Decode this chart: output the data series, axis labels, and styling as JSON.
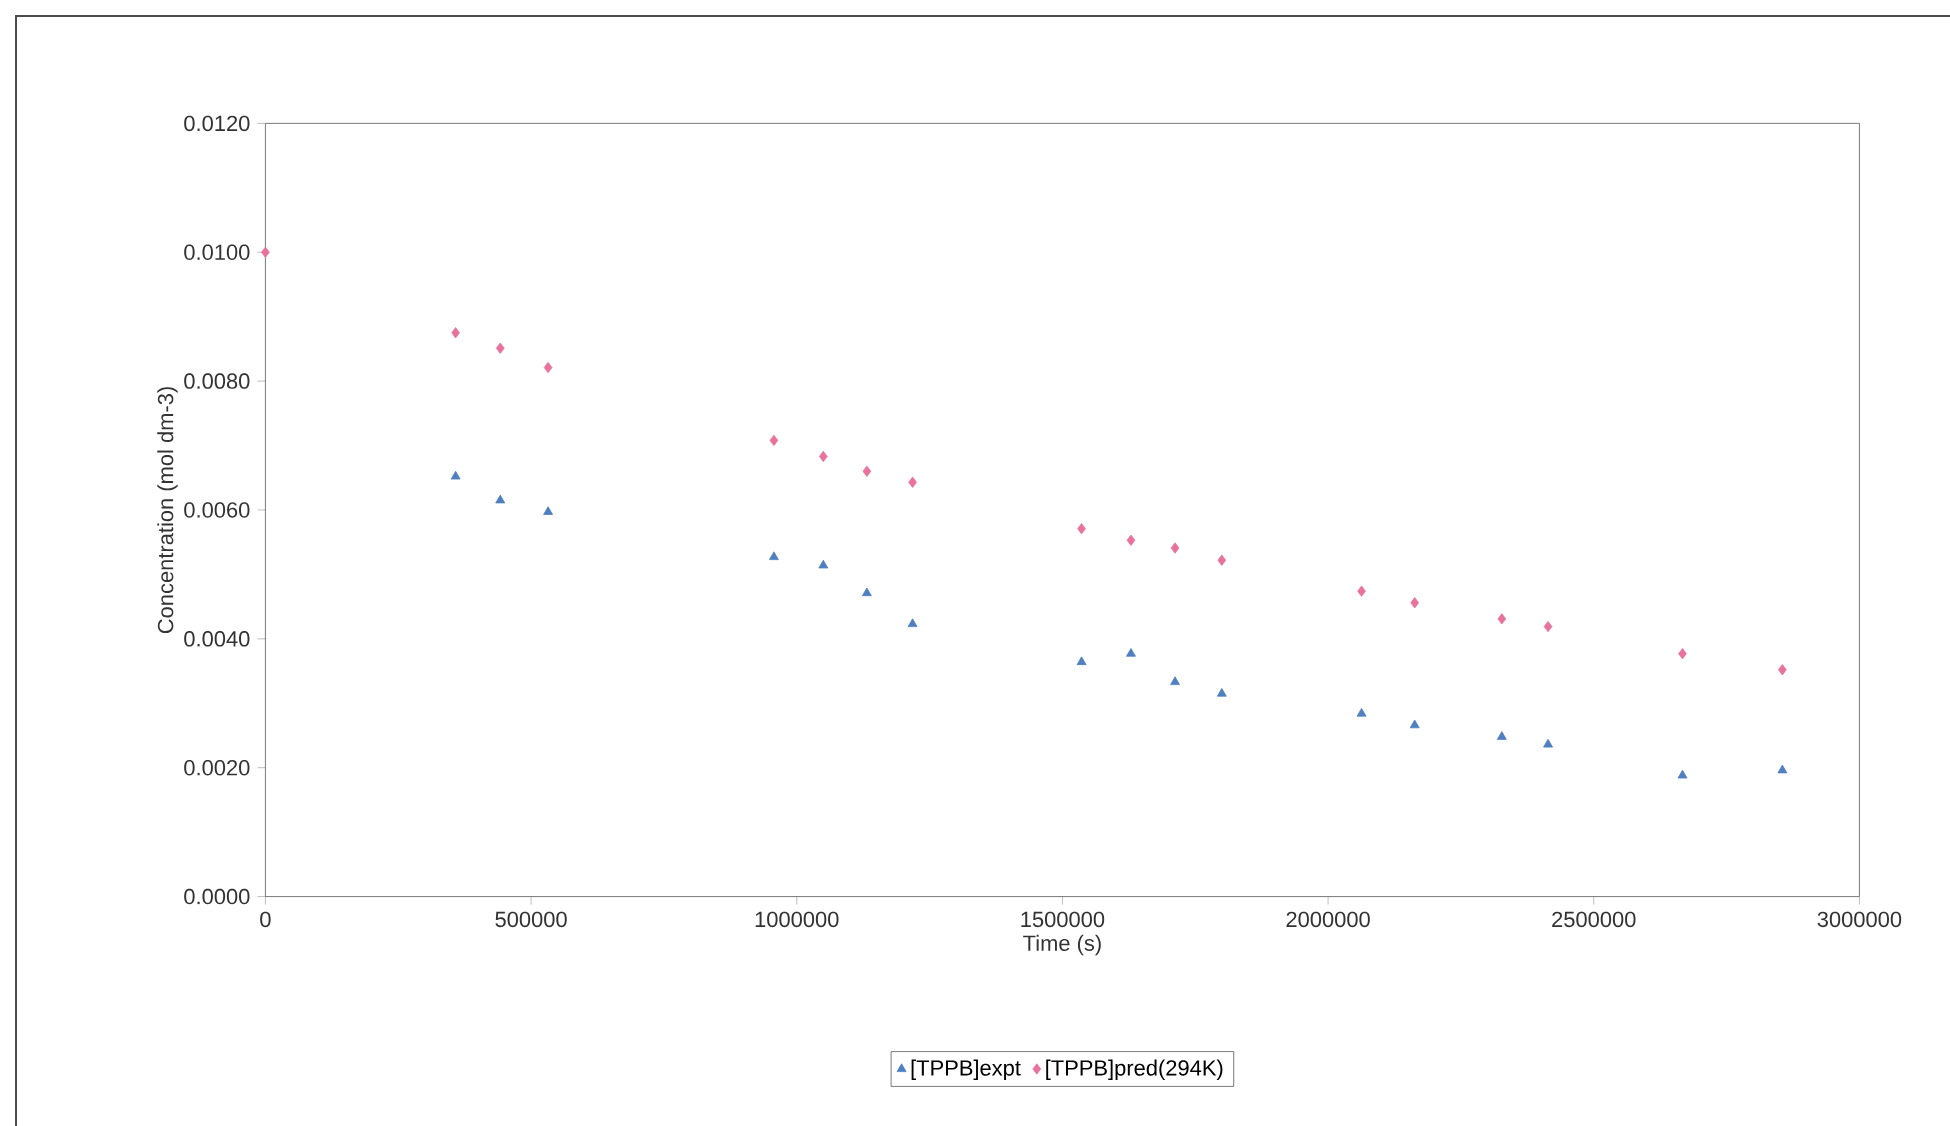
{
  "chart_data": {
    "type": "scatter",
    "xlabel": "Time (s)",
    "ylabel": "Concentration (mol dm-3)",
    "xlim": [
      0,
      3000000
    ],
    "xticks": [
      0,
      500000,
      1000000,
      1500000,
      2000000,
      2500000,
      3000000
    ],
    "ylim": [
      0,
      0.012
    ],
    "yticks": [
      {
        "value": 0,
        "label": "0.0000"
      },
      {
        "value": 0.002,
        "label": "0.0020"
      },
      {
        "value": 0.004,
        "label": "0.0040"
      },
      {
        "value": 0.006,
        "label": "0.0060"
      },
      {
        "value": 0.008,
        "label": "0.0080"
      },
      {
        "value": 0.01,
        "label": "0.0100"
      },
      {
        "value": 0.012,
        "label": "0.0120"
      }
    ],
    "grid": false,
    "legend": "bottom",
    "series": [
      {
        "name": "[TPPB]expt",
        "color": "#4f7fbf",
        "marker": "triangle",
        "x": [
          358000,
          442000,
          532000,
          957000,
          1050000,
          1132000,
          1218000,
          1536000,
          1629000,
          1712000,
          1800000,
          2063000,
          2163000,
          2327000,
          2414000,
          2667000,
          2855000
        ],
        "values": [
          0.00652,
          0.00615,
          0.00597,
          0.00527,
          0.00514,
          0.00471,
          0.00423,
          0.00364,
          0.00377,
          0.00333,
          0.00315,
          0.00284,
          0.00266,
          0.00248,
          0.00236,
          0.00188,
          0.00196
        ]
      },
      {
        "name": "[TPPB]pred(294K)",
        "color": "#e8729c",
        "marker": "diamond",
        "x": [
          0,
          358000,
          442000,
          532000,
          957000,
          1050000,
          1132000,
          1218000,
          1536000,
          1629000,
          1712000,
          1800000,
          2063000,
          2163000,
          2327000,
          2414000,
          2667000,
          2855000
        ],
        "values": [
          0.01,
          0.00875,
          0.00851,
          0.00821,
          0.00708,
          0.00683,
          0.0066,
          0.00643,
          0.00571,
          0.00553,
          0.00541,
          0.00522,
          0.00474,
          0.00456,
          0.00431,
          0.00419,
          0.00377,
          0.00352
        ]
      }
    ]
  }
}
